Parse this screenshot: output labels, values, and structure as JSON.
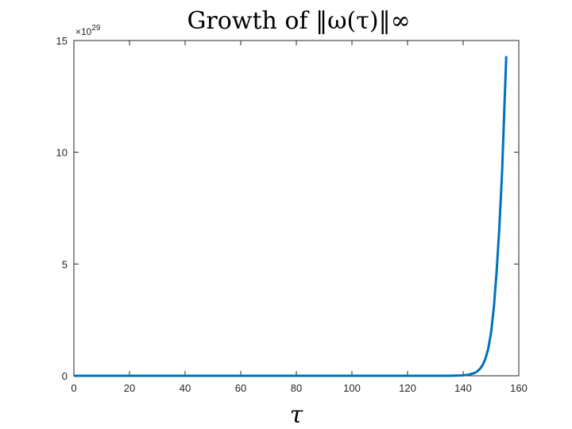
{
  "chart_data": {
    "type": "line",
    "title": "Growth of ‖ω(τ)‖∞",
    "xlabel": "τ",
    "ylabel": "",
    "xlim": [
      0,
      160
    ],
    "ylim": [
      0,
      15
    ],
    "y_exponent_label": "×10",
    "y_exponent_power": "29",
    "xticks": [
      "0",
      "20",
      "40",
      "60",
      "80",
      "100",
      "120",
      "140",
      "160"
    ],
    "yticks": [
      "0",
      "5",
      "10",
      "15"
    ],
    "grid": false,
    "legend": "none",
    "series": [
      {
        "color": "#0072BD",
        "x": [
          0,
          20,
          40,
          60,
          80,
          100,
          120,
          135,
          140,
          142,
          144,
          145,
          146,
          147,
          148,
          149,
          150,
          151,
          152,
          153,
          154,
          155,
          155.5
        ],
        "y": [
          0,
          0,
          0,
          0,
          0,
          0,
          0,
          0.0,
          0.02,
          0.05,
          0.12,
          0.19,
          0.3,
          0.48,
          0.76,
          1.2,
          1.9,
          3.0,
          4.6,
          6.6,
          9.1,
          12.6,
          14.3
        ]
      }
    ]
  }
}
